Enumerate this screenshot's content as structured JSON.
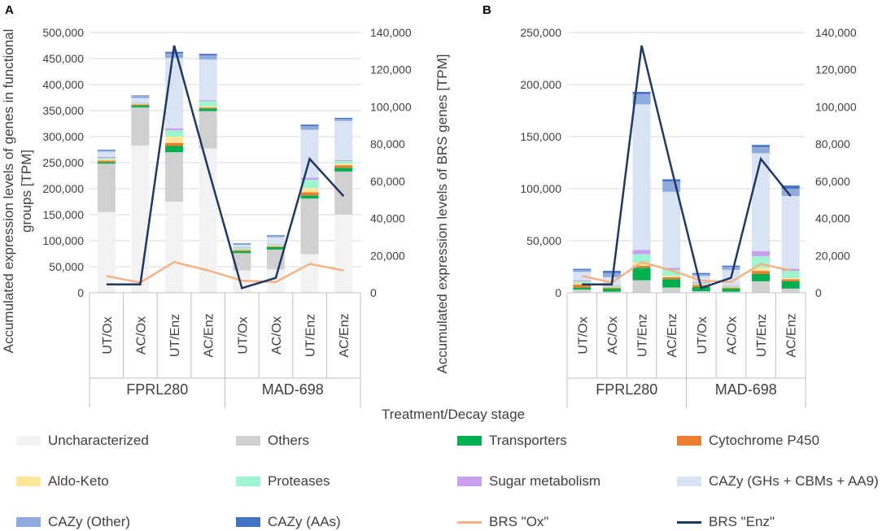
{
  "figure": {
    "x_title": "Treatment/Decay stage",
    "panels": [
      {
        "label": "A",
        "left_axis_title_1": "Accumulated expression levels of genes in functional",
        "left_axis_title_2": "groups [TPM]",
        "right_axis_title": "Accumulated expression levels of BRS genes [TPM]"
      },
      {
        "label": "B"
      }
    ]
  },
  "legend": {
    "items": [
      {
        "label": "Uncharacterized",
        "color": "#f2f2f2",
        "kind": "bar"
      },
      {
        "label": "Others",
        "color": "#d0d0d0",
        "kind": "bar"
      },
      {
        "label": "Transporters",
        "color": "#00b050",
        "kind": "bar"
      },
      {
        "label": "Cytochrome P450",
        "color": "#ed7d31",
        "kind": "bar"
      },
      {
        "label": "Aldo-Keto",
        "color": "#ffe699",
        "kind": "bar"
      },
      {
        "label": "Proteases",
        "color": "#9ff5d0",
        "kind": "bar"
      },
      {
        "label": "Sugar metabolism",
        "color": "#c9a0f0",
        "kind": "bar"
      },
      {
        "label": "CAZy (GHs + CBMs + AA9)",
        "color": "#dae3f3",
        "kind": "bar"
      },
      {
        "label": "CAZy (Other)",
        "color": "#8faadc",
        "kind": "bar"
      },
      {
        "label": "CAZy (AAs)",
        "color": "#4472c4",
        "kind": "bar"
      },
      {
        "label": "BRS \"Ox\"",
        "color": "#f4b183",
        "kind": "line"
      },
      {
        "label": "BRS \"Enz\"",
        "color": "#203864",
        "kind": "line"
      }
    ]
  },
  "chart_data": [
    {
      "panel": "A",
      "type": "bar",
      "stacked": true,
      "categories": [
        "UT/Ox",
        "AC/Ox",
        "UT/Enz",
        "AC/Enz",
        "UT/Ox",
        "AC/Ox",
        "UT/Enz",
        "AC/Enz"
      ],
      "groups": [
        {
          "label": "FPRL280",
          "span": [
            0,
            3
          ]
        },
        {
          "label": "MAD-698",
          "span": [
            4,
            7
          ]
        }
      ],
      "ylim": [
        0,
        500000
      ],
      "yticks": [
        "0",
        "50,000",
        "100,000",
        "150,000",
        "200,000",
        "250,000",
        "300,000",
        "350,000",
        "400,000",
        "450,000",
        "500,000"
      ],
      "y2lim": [
        0,
        140000
      ],
      "y2ticks": [
        "0",
        "20,000",
        "40,000",
        "60,000",
        "80,000",
        "100,000",
        "120,000",
        "140,000"
      ],
      "series": [
        {
          "name": "Uncharacterized",
          "values": [
            155000,
            283000,
            175000,
            277000,
            43000,
            45000,
            74000,
            150000
          ]
        },
        {
          "name": "Others",
          "values": [
            93000,
            73000,
            95000,
            72000,
            33000,
            38000,
            107000,
            83000
          ]
        },
        {
          "name": "Transporters",
          "values": [
            3000,
            4000,
            12000,
            5000,
            4000,
            5000,
            6000,
            7000
          ]
        },
        {
          "name": "Cytochrome P450",
          "values": [
            3000,
            2000,
            6000,
            2000,
            2000,
            1500,
            6000,
            5000
          ]
        },
        {
          "name": "Aldo-Keto",
          "values": [
            2000,
            1000,
            12000,
            2000,
            1000,
            1000,
            8000,
            3000
          ]
        },
        {
          "name": "Proteases",
          "values": [
            3000,
            1000,
            12000,
            10000,
            3000,
            2000,
            16000,
            5000
          ]
        },
        {
          "name": "Sugar metabolism",
          "values": [
            2000,
            1000,
            4000,
            2000,
            1000,
            1000,
            4000,
            2000
          ]
        },
        {
          "name": "CAZy (GHs + CBMs + AA9)",
          "values": [
            10000,
            9000,
            135000,
            78000,
            5000,
            13000,
            92000,
            75000
          ]
        },
        {
          "name": "CAZy (Other)",
          "values": [
            3000,
            4000,
            9000,
            8000,
            2000,
            3000,
            7000,
            4000
          ]
        },
        {
          "name": "CAZy (AAs)",
          "values": [
            1000,
            1000,
            3000,
            3000,
            1000,
            1000,
            3000,
            2000
          ]
        }
      ],
      "lines": [
        {
          "name": "BRS \"Ox\"",
          "axis": "right",
          "values": [
            9000,
            5500,
            16500,
            12000,
            6500,
            5800,
            15500,
            12000
          ]
        },
        {
          "name": "BRS \"Enz\"",
          "axis": "right",
          "values": [
            4500,
            4500,
            133000,
            67000,
            2500,
            8000,
            72000,
            52000
          ]
        }
      ]
    },
    {
      "panel": "B",
      "type": "bar",
      "stacked": true,
      "categories": [
        "UT/Ox",
        "AC/Ox",
        "UT/Enz",
        "AC/Enz",
        "UT/Ox",
        "AC/Ox",
        "UT/Enz",
        "AC/Enz"
      ],
      "groups": [
        {
          "label": "FPRL280",
          "span": [
            0,
            3
          ]
        },
        {
          "label": "MAD-698",
          "span": [
            4,
            7
          ]
        }
      ],
      "ylim": [
        0,
        250000
      ],
      "yticks": [
        "0",
        "50,000",
        "100,000",
        "150,000",
        "200,000",
        "250,000"
      ],
      "y2lim": [
        0,
        140000
      ],
      "y2ticks": [
        "0",
        "20,000",
        "40,000",
        "60,000",
        "80,000",
        "100,000",
        "120,000",
        "140,000"
      ],
      "series": [
        {
          "name": "Uncharacterized",
          "values": [
            0,
            0,
            0,
            0,
            0,
            0,
            0,
            0
          ]
        },
        {
          "name": "Others",
          "values": [
            3000,
            1000,
            12000,
            5000,
            1500,
            1000,
            11000,
            4000
          ]
        },
        {
          "name": "Transporters",
          "values": [
            2000,
            3000,
            12000,
            8000,
            4000,
            3000,
            7000,
            7000
          ]
        },
        {
          "name": "Cytochrome P450",
          "values": [
            3000,
            1000,
            2000,
            2000,
            2000,
            1000,
            3000,
            2000
          ]
        },
        {
          "name": "Aldo-Keto",
          "values": [
            1000,
            500,
            3000,
            1000,
            500,
            500,
            3000,
            1000
          ]
        },
        {
          "name": "Proteases",
          "values": [
            2000,
            1000,
            8000,
            6000,
            1000,
            1000,
            11000,
            7000
          ]
        },
        {
          "name": "Sugar metabolism",
          "values": [
            1000,
            500,
            4000,
            2000,
            1000,
            500,
            5000,
            2000
          ]
        },
        {
          "name": "CAZy (GHs + CBMs + AA9)",
          "values": [
            8000,
            8000,
            140000,
            73000,
            6000,
            15000,
            94000,
            70000
          ]
        },
        {
          "name": "CAZy (Other)",
          "values": [
            2000,
            4000,
            10000,
            10000,
            2000,
            3000,
            6000,
            7000
          ]
        },
        {
          "name": "CAZy (AAs)",
          "values": [
            1000,
            2000,
            2000,
            2000,
            1000,
            1000,
            2000,
            3000
          ]
        }
      ],
      "lines": [
        {
          "name": "BRS \"Ox\"",
          "axis": "right",
          "values": [
            9000,
            5500,
            16500,
            12000,
            6500,
            5800,
            15500,
            12000
          ]
        },
        {
          "name": "BRS \"Enz\"",
          "axis": "right",
          "values": [
            4500,
            4500,
            133000,
            67000,
            2500,
            8000,
            72000,
            52000
          ]
        }
      ]
    }
  ]
}
